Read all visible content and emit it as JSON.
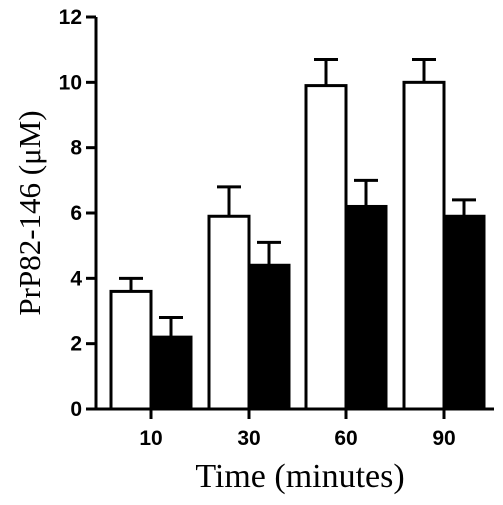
{
  "chart_data": {
    "type": "bar",
    "categories": [
      "10",
      "30",
      "60",
      "90"
    ],
    "series": [
      {
        "fill": "#ffffff",
        "values": [
          3.6,
          5.9,
          9.9,
          10.0
        ],
        "errors": [
          0.4,
          0.9,
          0.8,
          0.7
        ]
      },
      {
        "fill": "#000000",
        "values": [
          2.2,
          4.4,
          6.2,
          5.9
        ],
        "errors": [
          0.6,
          0.7,
          0.8,
          0.5
        ]
      }
    ],
    "xlabel": "Time (minutes)",
    "ylabel": "PrP82-146 (μM)",
    "ylim": [
      0,
      12
    ],
    "yticks": [
      "0",
      "2",
      "4",
      "6",
      "8",
      "10",
      "12"
    ],
    "grid": false,
    "legend": "none"
  }
}
